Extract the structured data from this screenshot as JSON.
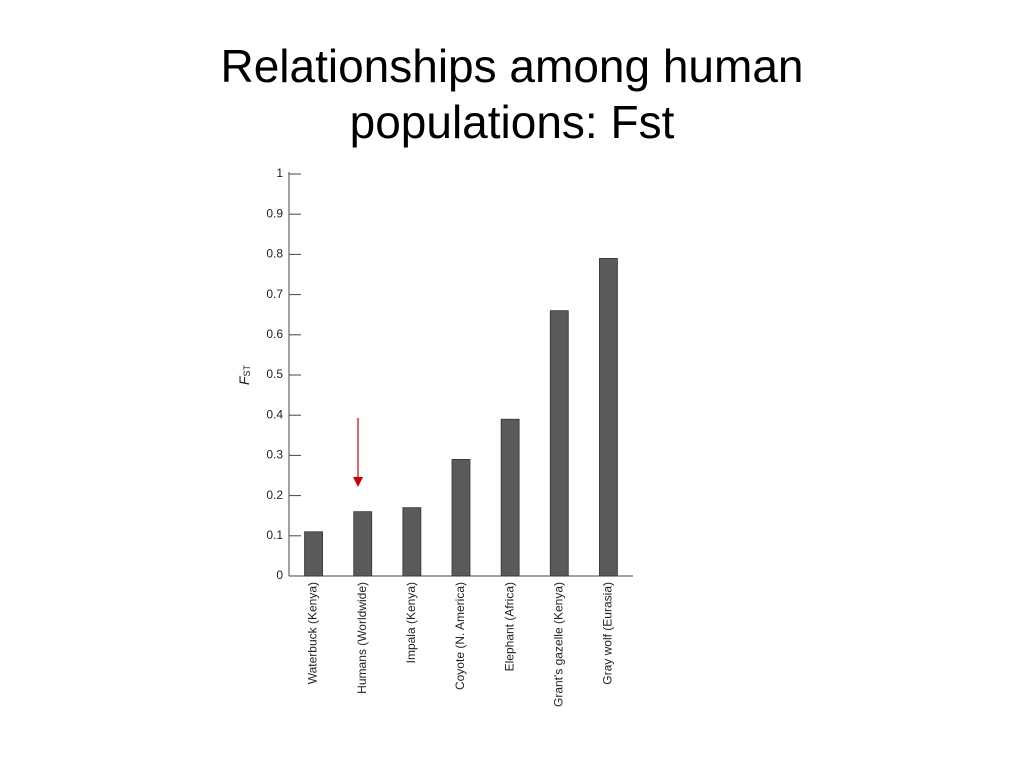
{
  "chart_data": {
    "type": "bar",
    "title": "Relationships among human populations:  Fst",
    "y_label": {
      "main": "F",
      "subscript": "ST"
    },
    "categories": [
      "Waterbuck (Kenya)",
      "Humans (Worldwide)",
      "Impala (Kenya)",
      "Coyote (N. America)",
      "Elephant (Africa)",
      "Grant's gazelle (Kenya)",
      "Gray wolf (Eurasia)"
    ],
    "values": [
      0.11,
      0.16,
      0.17,
      0.29,
      0.39,
      0.66,
      0.79
    ],
    "color": "#5a5a5a",
    "ylim": [
      0,
      1
    ],
    "yticks": [
      0,
      0.1,
      0.2,
      0.3,
      0.4,
      0.5,
      0.6,
      0.7,
      0.8,
      0.9,
      1
    ]
  }
}
